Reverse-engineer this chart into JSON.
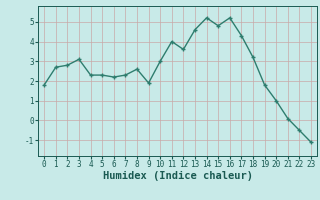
{
  "xlabel": "Humidex (Indice chaleur)",
  "x": [
    0,
    1,
    2,
    3,
    4,
    5,
    6,
    7,
    8,
    9,
    10,
    11,
    12,
    13,
    14,
    15,
    16,
    17,
    18,
    19,
    20,
    21,
    22,
    23
  ],
  "y": [
    1.8,
    2.7,
    2.8,
    3.1,
    2.3,
    2.3,
    2.2,
    2.3,
    2.6,
    1.9,
    3.0,
    4.0,
    3.6,
    4.6,
    5.2,
    4.8,
    5.2,
    4.3,
    3.2,
    1.8,
    1.0,
    0.1,
    -0.5,
    -1.1
  ],
  "line_color": "#2e7d6e",
  "marker": "+",
  "marker_size": 3.5,
  "marker_linewidth": 1.0,
  "bg_color": "#c8eae8",
  "grid_color": "#c8a8a8",
  "axis_bg": "#c8eae8",
  "ylim": [
    -1.8,
    5.8
  ],
  "yticks": [
    -1,
    0,
    1,
    2,
    3,
    4,
    5
  ],
  "xlim": [
    -0.5,
    23.5
  ],
  "xticks": [
    0,
    1,
    2,
    3,
    4,
    5,
    6,
    7,
    8,
    9,
    10,
    11,
    12,
    13,
    14,
    15,
    16,
    17,
    18,
    19,
    20,
    21,
    22,
    23
  ],
  "tick_fontsize": 5.5,
  "xlabel_fontsize": 7.5,
  "label_color": "#1a5a52"
}
